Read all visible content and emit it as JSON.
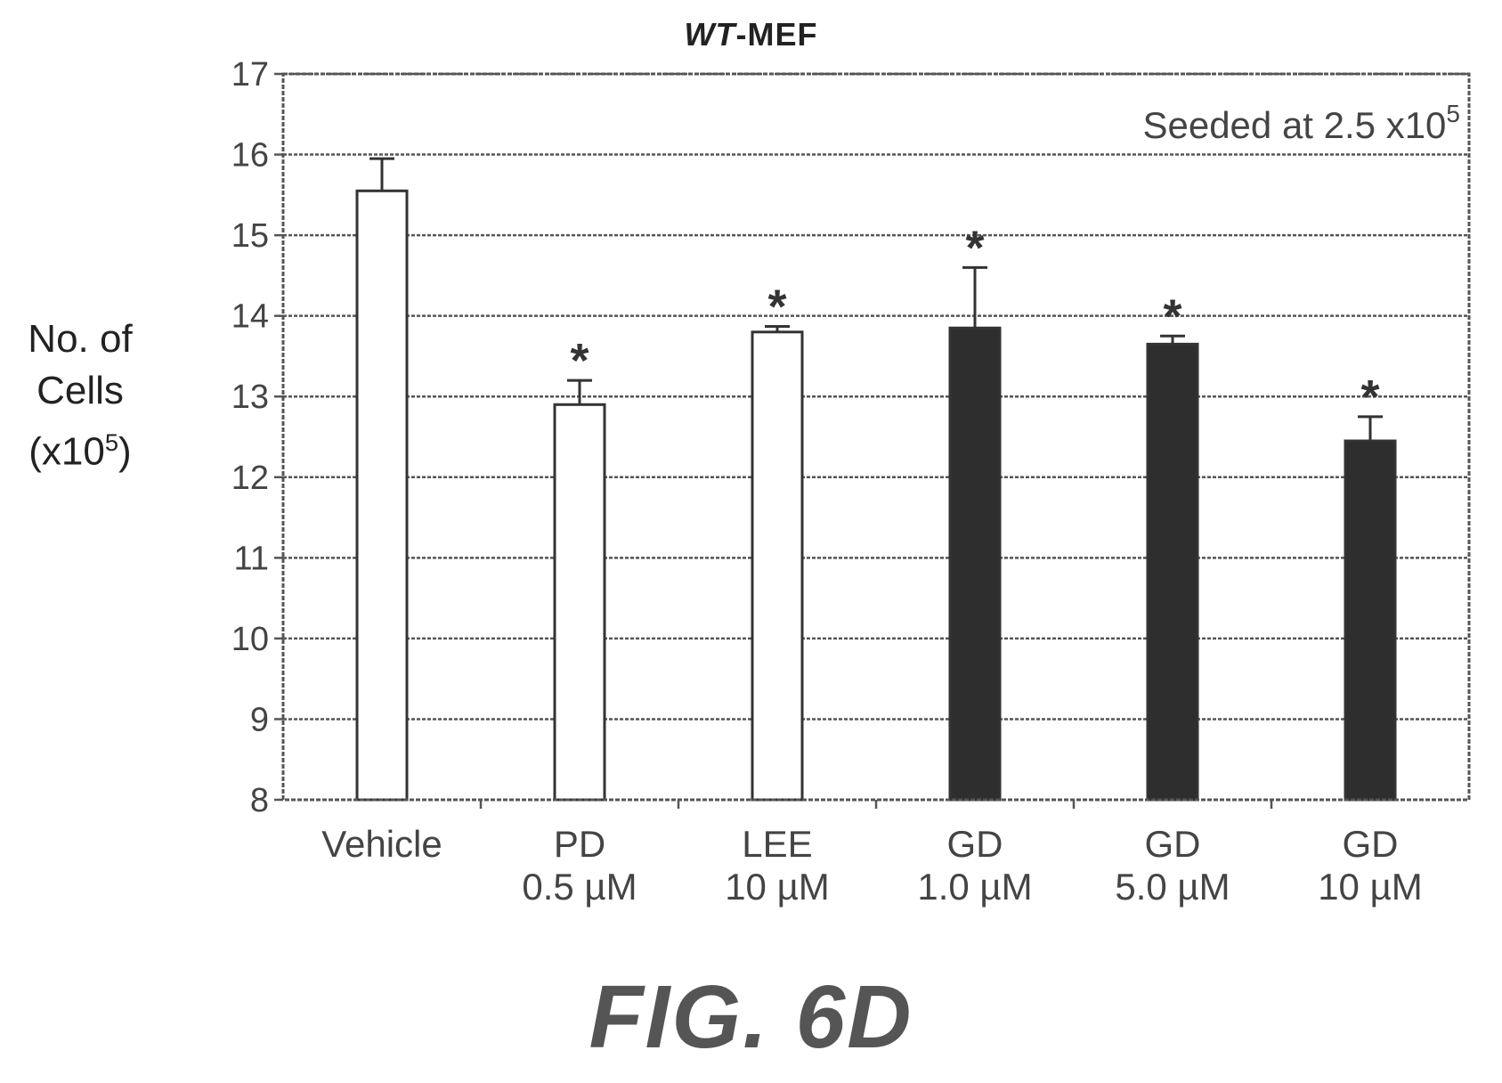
{
  "chart_data": {
    "type": "bar",
    "title_italic": "WT",
    "title_rest": "-MEF",
    "ylabel_lines": [
      "No. of",
      "Cells"
    ],
    "ylabel_unit_base": "(x10",
    "ylabel_unit_sup": "5",
    "ylabel_unit_end": ")",
    "annotation_text": "Seeded at 2.5 x10",
    "annotation_sup": "5",
    "ylim": [
      8,
      17
    ],
    "yticks": [
      8,
      9,
      10,
      11,
      12,
      13,
      14,
      15,
      16,
      17
    ],
    "grid": true,
    "categories": [
      {
        "line1": "Vehicle",
        "line2": ""
      },
      {
        "line1": "PD",
        "line2": "0.5 µM"
      },
      {
        "line1": "LEE",
        "line2": "10 µM"
      },
      {
        "line1": "GD",
        "line2": "1.0 µM"
      },
      {
        "line1": "GD",
        "line2": "5.0 µM"
      },
      {
        "line1": "GD",
        "line2": "10 µM"
      }
    ],
    "values": [
      15.55,
      12.9,
      13.8,
      13.85,
      13.65,
      12.45
    ],
    "error": [
      0.4,
      0.3,
      0.07,
      0.75,
      0.1,
      0.3
    ],
    "significance": [
      "",
      "*",
      "*",
      "*",
      "*",
      "*"
    ],
    "fill": [
      "white",
      "white",
      "white",
      "dark",
      "dark",
      "dark"
    ]
  },
  "colors": {
    "dark_bar": "#2e2e2e",
    "white_bar": "#ffffff",
    "stroke": "#333333"
  },
  "figure_label": "FIG. 6D"
}
